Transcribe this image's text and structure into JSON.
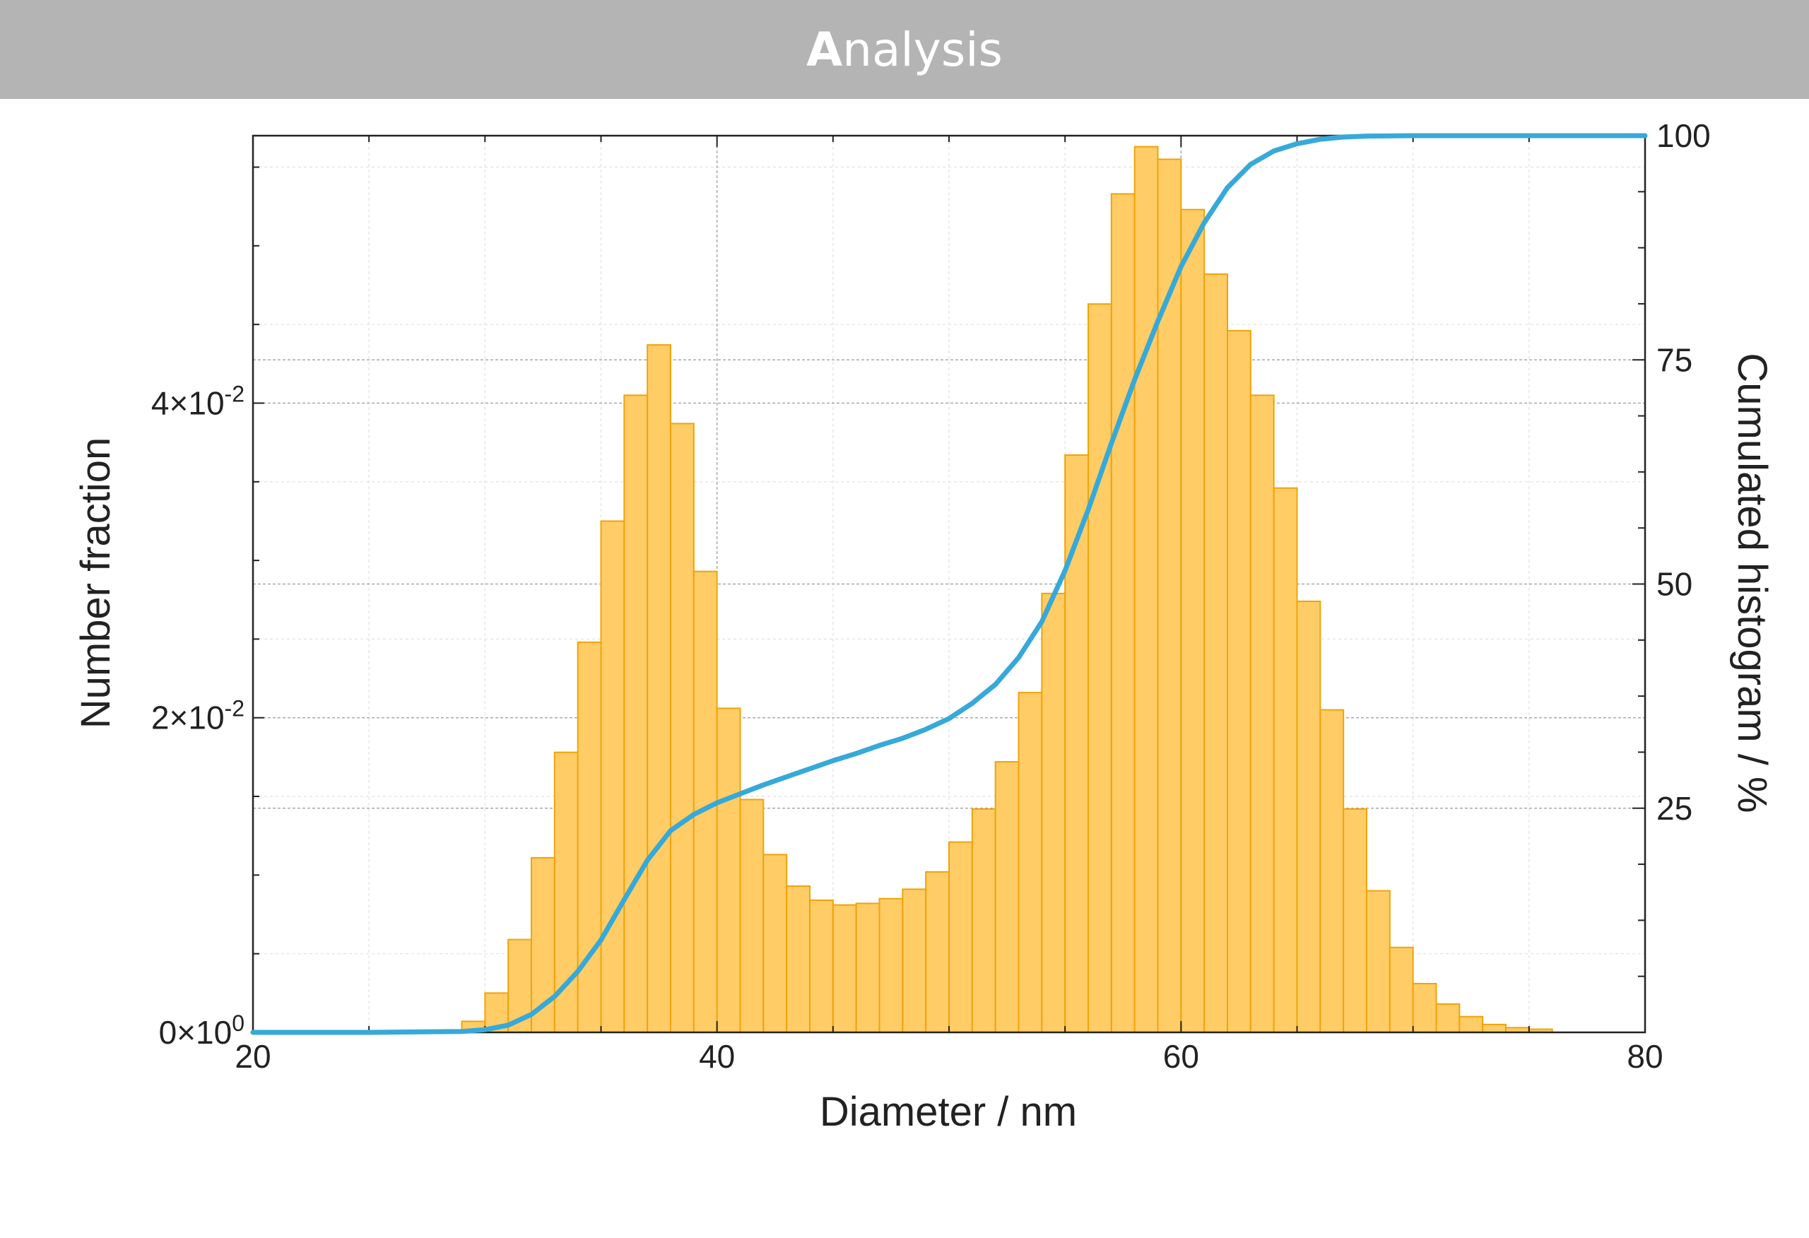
{
  "header": {
    "title_first": "A",
    "title_rest": "nalysis"
  },
  "chart_data": {
    "type": "bar",
    "title": "",
    "xlabel": "Diameter / nm",
    "ylabel": "Number fraction",
    "y2label": "Cumulated histogram / %",
    "xlim": [
      20,
      80
    ],
    "ylim": [
      0,
      0.057
    ],
    "y2lim": [
      0,
      100
    ],
    "x_ticks": [
      "20",
      "40",
      "60",
      "80"
    ],
    "y_ticks": [
      {
        "value": 0,
        "mantissa": "0×10",
        "exponent": "0"
      },
      {
        "value": 0.02,
        "mantissa": "2×10",
        "exponent": "-2"
      },
      {
        "value": 0.04,
        "mantissa": "4×10",
        "exponent": "-2"
      }
    ],
    "y2_ticks": [
      "25",
      "50",
      "75",
      "100"
    ],
    "grid": true,
    "colors": {
      "bars": "#ffcc66",
      "bar_edge": "#f0a30a",
      "cumulative": "#36a9d9",
      "header": "#b4b4b4"
    },
    "bin_width": 1,
    "bins": [
      {
        "x": 29.5,
        "y": 0.0007
      },
      {
        "x": 30.5,
        "y": 0.0025
      },
      {
        "x": 31.5,
        "y": 0.0059
      },
      {
        "x": 32.5,
        "y": 0.0111
      },
      {
        "x": 33.5,
        "y": 0.0178
      },
      {
        "x": 34.5,
        "y": 0.0248
      },
      {
        "x": 35.5,
        "y": 0.0325
      },
      {
        "x": 36.5,
        "y": 0.0405
      },
      {
        "x": 37.5,
        "y": 0.0437
      },
      {
        "x": 38.5,
        "y": 0.0387
      },
      {
        "x": 39.5,
        "y": 0.0293
      },
      {
        "x": 40.5,
        "y": 0.0206
      },
      {
        "x": 41.5,
        "y": 0.0148
      },
      {
        "x": 42.5,
        "y": 0.0113
      },
      {
        "x": 43.5,
        "y": 0.0093
      },
      {
        "x": 44.5,
        "y": 0.0084
      },
      {
        "x": 45.5,
        "y": 0.0081
      },
      {
        "x": 46.5,
        "y": 0.0082
      },
      {
        "x": 47.5,
        "y": 0.0085
      },
      {
        "x": 48.5,
        "y": 0.0091
      },
      {
        "x": 49.5,
        "y": 0.0102
      },
      {
        "x": 50.5,
        "y": 0.0121
      },
      {
        "x": 51.5,
        "y": 0.0142
      },
      {
        "x": 52.5,
        "y": 0.0172
      },
      {
        "x": 53.5,
        "y": 0.0216
      },
      {
        "x": 54.5,
        "y": 0.0279
      },
      {
        "x": 55.5,
        "y": 0.0367
      },
      {
        "x": 56.5,
        "y": 0.0463
      },
      {
        "x": 57.5,
        "y": 0.0533
      },
      {
        "x": 58.5,
        "y": 0.0563
      },
      {
        "x": 59.5,
        "y": 0.0555
      },
      {
        "x": 60.5,
        "y": 0.0523
      },
      {
        "x": 61.5,
        "y": 0.0482
      },
      {
        "x": 62.5,
        "y": 0.0446
      },
      {
        "x": 63.5,
        "y": 0.0405
      },
      {
        "x": 64.5,
        "y": 0.0346
      },
      {
        "x": 65.5,
        "y": 0.0274
      },
      {
        "x": 66.5,
        "y": 0.0205
      },
      {
        "x": 67.5,
        "y": 0.0142
      },
      {
        "x": 68.5,
        "y": 0.009
      },
      {
        "x": 69.5,
        "y": 0.0054
      },
      {
        "x": 70.5,
        "y": 0.0031
      },
      {
        "x": 71.5,
        "y": 0.0018
      },
      {
        "x": 72.5,
        "y": 0.001
      },
      {
        "x": 73.5,
        "y": 0.0005
      },
      {
        "x": 74.5,
        "y": 0.0003
      },
      {
        "x": 75.5,
        "y": 0.0002
      }
    ],
    "cumulative": [
      {
        "x": 20,
        "y": 0
      },
      {
        "x": 25,
        "y": 0
      },
      {
        "x": 29,
        "y": 0.1
      },
      {
        "x": 30,
        "y": 0.3
      },
      {
        "x": 31,
        "y": 0.8
      },
      {
        "x": 32,
        "y": 2
      },
      {
        "x": 33,
        "y": 4
      },
      {
        "x": 34,
        "y": 6.8
      },
      {
        "x": 35,
        "y": 10.3
      },
      {
        "x": 36,
        "y": 14.8
      },
      {
        "x": 37,
        "y": 19.2
      },
      {
        "x": 38,
        "y": 22.5
      },
      {
        "x": 39,
        "y": 24.3
      },
      {
        "x": 40,
        "y": 25.6
      },
      {
        "x": 41,
        "y": 26.6
      },
      {
        "x": 42,
        "y": 27.6
      },
      {
        "x": 43,
        "y": 28.5
      },
      {
        "x": 44,
        "y": 29.4
      },
      {
        "x": 45,
        "y": 30.3
      },
      {
        "x": 46,
        "y": 31.1
      },
      {
        "x": 47,
        "y": 32
      },
      {
        "x": 48,
        "y": 32.8
      },
      {
        "x": 49,
        "y": 33.8
      },
      {
        "x": 50,
        "y": 35
      },
      {
        "x": 51,
        "y": 36.7
      },
      {
        "x": 52,
        "y": 38.8
      },
      {
        "x": 53,
        "y": 41.8
      },
      {
        "x": 54,
        "y": 45.8
      },
      {
        "x": 55,
        "y": 51.5
      },
      {
        "x": 56,
        "y": 58.3
      },
      {
        "x": 57,
        "y": 65.7
      },
      {
        "x": 58,
        "y": 72.8
      },
      {
        "x": 59,
        "y": 79.3
      },
      {
        "x": 60,
        "y": 85.4
      },
      {
        "x": 61,
        "y": 90.3
      },
      {
        "x": 62,
        "y": 94.2
      },
      {
        "x": 63,
        "y": 96.8
      },
      {
        "x": 64,
        "y": 98.3
      },
      {
        "x": 65,
        "y": 99.1
      },
      {
        "x": 66,
        "y": 99.6
      },
      {
        "x": 67,
        "y": 99.85
      },
      {
        "x": 68,
        "y": 99.95
      },
      {
        "x": 70,
        "y": 100
      },
      {
        "x": 80,
        "y": 100
      }
    ]
  }
}
